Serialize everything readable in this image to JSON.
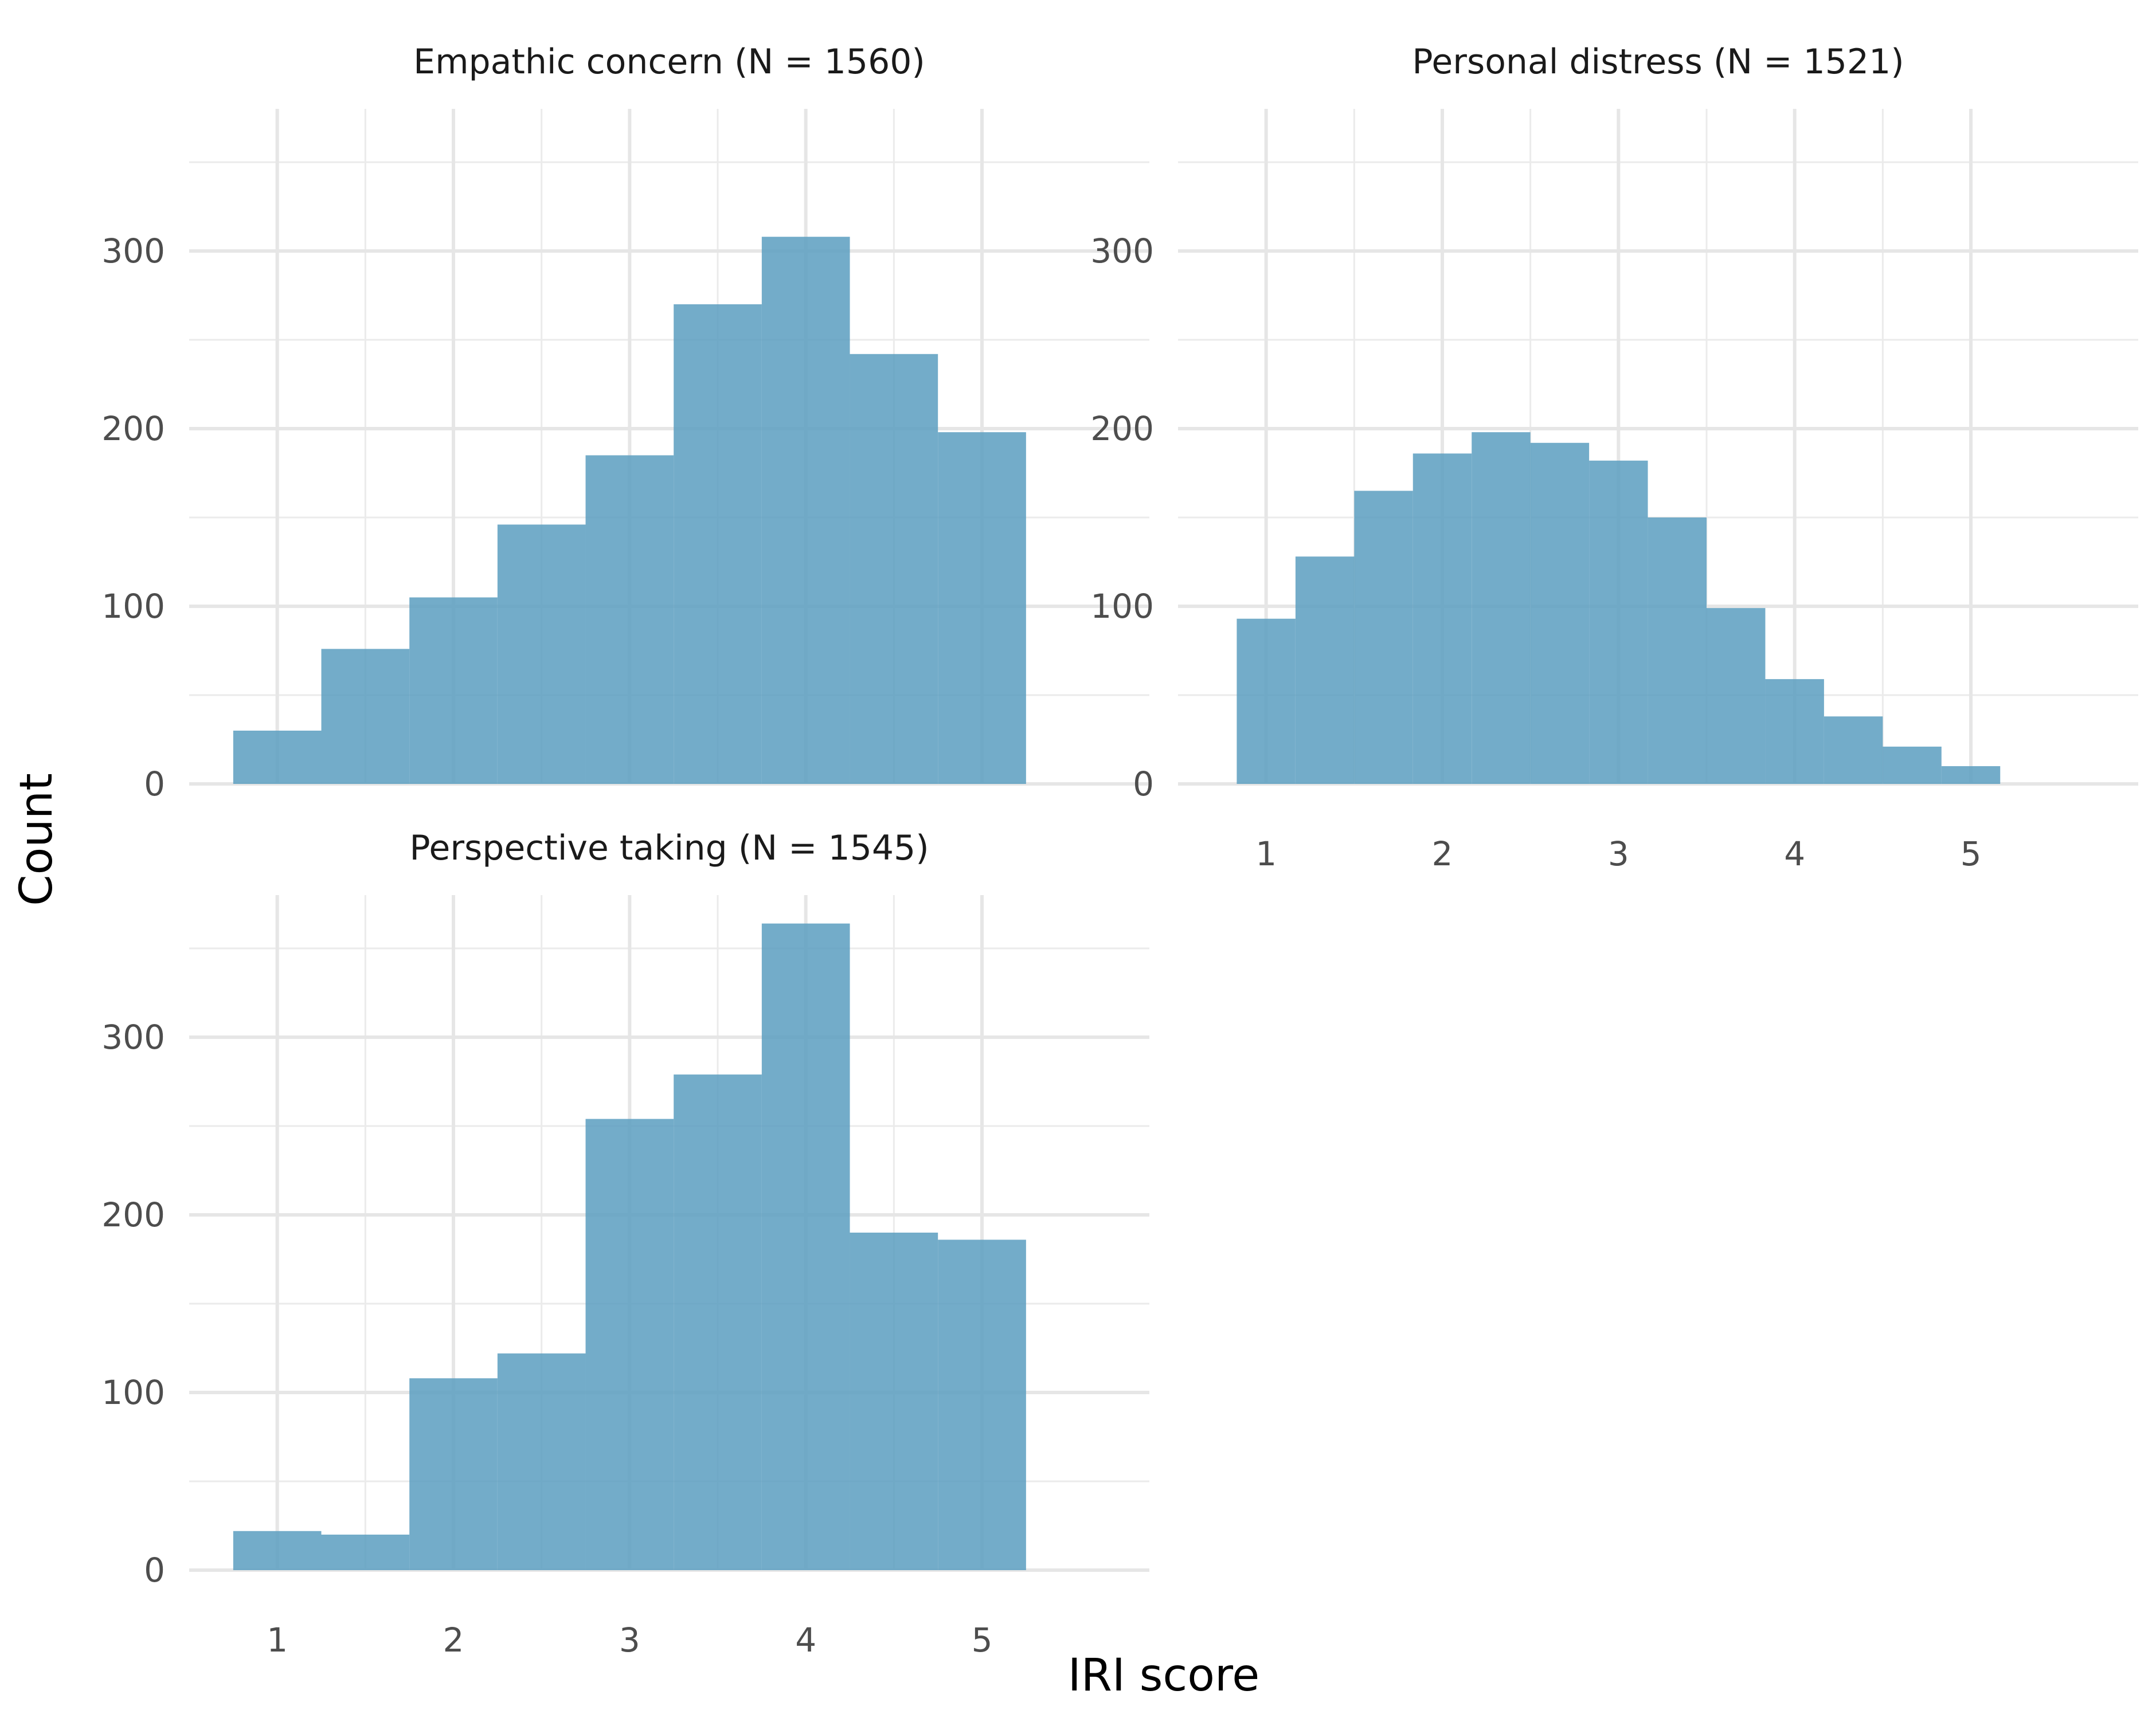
{
  "chart_data": {
    "type": "bar",
    "layout": "facet-wrap",
    "xlabel": "IRI score",
    "ylabel": "Count",
    "bar_color": "#5b9ec0",
    "grid": true,
    "x_range": [
      0.5,
      5.95
    ],
    "y_range": [
      0,
      380
    ],
    "x_ticks": [
      1,
      2,
      3,
      4,
      5
    ],
    "y_ticks": [
      0,
      100,
      200,
      300
    ],
    "panels": [
      {
        "title": "Empathic concern (N = 1560)",
        "bin_width": 0.5,
        "bins_start": [
          0.75,
          1.25,
          1.75,
          2.25,
          2.75,
          3.25,
          3.75,
          4.25,
          4.75
        ],
        "values": [
          30,
          76,
          105,
          146,
          185,
          270,
          308,
          242,
          198
        ],
        "show_x_tick_labels": false
      },
      {
        "title": "Personal distress (N = 1521)",
        "bin_width": 0.3333,
        "bins_start": [
          0.8333,
          1.1667,
          1.5,
          1.8333,
          2.1667,
          2.5,
          2.8333,
          3.1667,
          3.5,
          3.8333,
          4.1667,
          4.5,
          4.8333
        ],
        "values": [
          93,
          128,
          165,
          186,
          198,
          192,
          182,
          150,
          99,
          59,
          38,
          21,
          10
        ],
        "show_x_tick_labels": true
      },
      {
        "title": "Perspective taking (N = 1545)",
        "bin_width": 0.5,
        "bins_start": [
          0.75,
          1.25,
          1.75,
          2.25,
          2.75,
          3.25,
          3.75,
          4.25,
          4.75
        ],
        "values": [
          22,
          20,
          108,
          122,
          254,
          279,
          364,
          190,
          186
        ],
        "show_x_tick_labels": true
      }
    ]
  }
}
